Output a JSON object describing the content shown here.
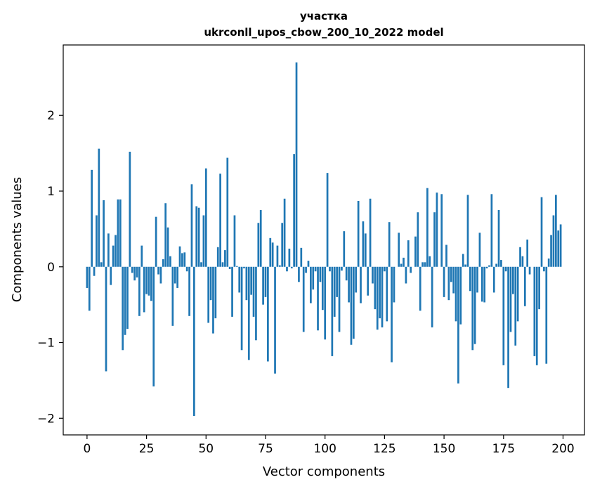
{
  "chart_data": {
    "type": "bar",
    "title_line1": "участка",
    "title_line2": "ukrconll_upos_cbow_200_10_2022 model",
    "xlabel": "Vector components",
    "ylabel": "Components values",
    "xlim": [
      -10,
      209
    ],
    "ylim": [
      -2.22,
      2.93
    ],
    "xticks": [
      0,
      25,
      50,
      75,
      100,
      125,
      150,
      175,
      200
    ],
    "xtick_labels": [
      "0",
      "25",
      "50",
      "75",
      "100",
      "125",
      "150",
      "175",
      "200"
    ],
    "yticks": [
      -2,
      -1,
      0,
      1,
      2
    ],
    "ytick_labels": [
      "−2",
      "−1",
      "0",
      "1",
      "2"
    ],
    "bar_color": "#1f77b4",
    "grid": false,
    "x": [
      0,
      1,
      2,
      3,
      4,
      5,
      6,
      7,
      8,
      9,
      10,
      11,
      12,
      13,
      14,
      15,
      16,
      17,
      18,
      19,
      20,
      21,
      22,
      23,
      24,
      25,
      26,
      27,
      28,
      29,
      30,
      31,
      32,
      33,
      34,
      35,
      36,
      37,
      38,
      39,
      40,
      41,
      42,
      43,
      44,
      45,
      46,
      47,
      48,
      49,
      50,
      51,
      52,
      53,
      54,
      55,
      56,
      57,
      58,
      59,
      60,
      61,
      62,
      63,
      64,
      65,
      66,
      67,
      68,
      69,
      70,
      71,
      72,
      73,
      74,
      75,
      76,
      77,
      78,
      79,
      80,
      81,
      82,
      83,
      84,
      85,
      86,
      87,
      88,
      89,
      90,
      91,
      92,
      93,
      94,
      95,
      96,
      97,
      98,
      99,
      100,
      101,
      102,
      103,
      104,
      105,
      106,
      107,
      108,
      109,
      110,
      111,
      112,
      113,
      114,
      115,
      116,
      117,
      118,
      119,
      120,
      121,
      122,
      123,
      124,
      125,
      126,
      127,
      128,
      129,
      130,
      131,
      132,
      133,
      134,
      135,
      136,
      137,
      138,
      139,
      140,
      141,
      142,
      143,
      144,
      145,
      146,
      147,
      148,
      149,
      150,
      151,
      152,
      153,
      154,
      155,
      156,
      157,
      158,
      159,
      160,
      161,
      162,
      163,
      164,
      165,
      166,
      167,
      168,
      169,
      170,
      171,
      172,
      173,
      174,
      175,
      176,
      177,
      178,
      179,
      180,
      181,
      182,
      183,
      184,
      185,
      186,
      187,
      188,
      189,
      190,
      191,
      192,
      193,
      194,
      195,
      196,
      197,
      198,
      199
    ],
    "values": [
      -0.28,
      -0.58,
      1.28,
      -0.12,
      0.68,
      1.56,
      0.06,
      0.88,
      -1.38,
      0.44,
      -0.24,
      0.28,
      0.42,
      0.89,
      0.89,
      -1.1,
      -0.9,
      -0.82,
      1.52,
      -0.08,
      -0.18,
      -0.14,
      -0.65,
      0.28,
      -0.6,
      -0.36,
      -0.38,
      -0.45,
      -1.58,
      0.66,
      -0.1,
      -0.22,
      0.1,
      0.84,
      0.52,
      0.14,
      -0.78,
      -0.22,
      -0.28,
      0.27,
      0.18,
      0.19,
      -0.06,
      -0.65,
      1.09,
      -1.97,
      0.8,
      0.78,
      0.06,
      0.68,
      1.3,
      -0.74,
      -0.44,
      -0.88,
      -0.68,
      0.26,
      1.23,
      0.06,
      0.22,
      1.44,
      -0.03,
      -0.66,
      0.68,
      0.01,
      -0.34,
      -1.1,
      -0.02,
      -0.44,
      -1.23,
      -0.37,
      -0.66,
      -0.97,
      0.58,
      0.75,
      -0.5,
      -0.4,
      -1.25,
      0.38,
      0.32,
      -1.41,
      0.28,
      0.02,
      0.58,
      0.9,
      -0.06,
      0.24,
      -0.02,
      1.49,
      2.7,
      -0.2,
      0.25,
      -0.86,
      -0.08,
      0.08,
      -0.48,
      -0.3,
      -0.06,
      -0.84,
      -0.2,
      -0.57,
      -0.96,
      1.24,
      -0.06,
      -1.18,
      -0.66,
      -0.4,
      -0.86,
      -0.05,
      0.47,
      -0.18,
      -0.47,
      -1.03,
      -0.95,
      -0.34,
      0.87,
      -0.48,
      0.6,
      0.44,
      -0.38,
      0.9,
      -0.22,
      -0.56,
      -0.83,
      -0.68,
      -0.8,
      -0.06,
      -0.72,
      0.59,
      -1.26,
      -0.47,
      0.0,
      0.45,
      0.04,
      0.12,
      -0.22,
      0.35,
      -0.08,
      0.0,
      0.4,
      0.72,
      -0.58,
      0.06,
      0.06,
      1.04,
      0.14,
      -0.8,
      0.72,
      0.98,
      0.0,
      0.96,
      -0.4,
      0.29,
      -0.44,
      -0.2,
      -0.35,
      -0.72,
      -1.54,
      -0.76,
      0.17,
      0.03,
      0.95,
      -0.32,
      -1.1,
      -1.02,
      -0.34,
      0.45,
      -0.46,
      -0.47,
      -0.02,
      0.02,
      0.96,
      -0.34,
      0.04,
      0.75,
      0.09,
      -1.3,
      -0.06,
      -1.6,
      -0.86,
      -0.36,
      -1.04,
      -0.72,
      0.26,
      0.14,
      -0.52,
      0.36,
      -0.1,
      0.0,
      -1.18,
      -1.3,
      -0.56,
      0.92,
      -0.06,
      -1.28,
      0.11,
      0.42,
      0.68,
      0.95,
      0.48,
      0.56
    ]
  }
}
